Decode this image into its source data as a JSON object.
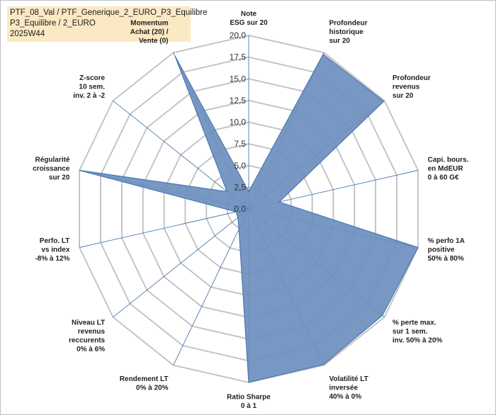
{
  "header": {
    "line1": "PTF_08_Val / PTF_Generique_2_EURO_P3_Equilibre",
    "line2": "P3_Equilibre / 2_EURO",
    "line3": "2025W44"
  },
  "chart_data": {
    "type": "radar",
    "title": "",
    "range": [
      0,
      20
    ],
    "ticks": [
      "0,0",
      "2,5",
      "5,0",
      "7,5",
      "10,0",
      "12,5",
      "15,0",
      "17,5",
      "20,0"
    ],
    "tick_values": [
      0,
      2.5,
      5,
      7.5,
      10,
      12.5,
      15,
      17.5,
      20
    ],
    "grid": true,
    "categories": [
      [
        "Note",
        "ESG sur 20"
      ],
      [
        "Profondeur",
        "historique",
        "sur 20"
      ],
      [
        "Profondeur",
        "revenus",
        "sur 20"
      ],
      [
        "Capi. bours.",
        "en MdEUR",
        "0 à 60 G€"
      ],
      [
        "% perfo 1A",
        "positive",
        "50% à 80%"
      ],
      [
        "% perte max.",
        "sur 1 sem.",
        "inv. 50% à 20%"
      ],
      [
        "Volatilité LT",
        "inversée",
        "40% à 0%"
      ],
      [
        "Ratio Sharpe",
        "0 à 1"
      ],
      [
        "Rendement LT",
        "0% à 20%"
      ],
      [
        "Niveau LT",
        "revenus",
        "reccurents",
        "0% à 6%"
      ],
      [
        "Perfo. LT",
        "vs index",
        "-8% à 12%"
      ],
      [
        "Régularité",
        "croissance",
        "sur 20"
      ],
      [
        "Z-score",
        "10 sem.",
        "inv. 2 à -2"
      ],
      [
        "Momentum",
        "Achat (20) /",
        "Vente (0)"
      ]
    ],
    "series": [
      {
        "values": [
          2.0,
          19.8,
          19.9,
          3.6,
          20.0,
          19.7,
          19.9,
          20.0,
          2.6,
          1.6,
          1.5,
          20.0,
          3.2,
          19.6
        ],
        "color": "#4a78b0"
      }
    ],
    "colors": {
      "fill": "#6d8fbe",
      "stroke": "#4a78b0",
      "grid": "#bfbfbf",
      "spoke": "#4a78b0",
      "title_bg": "#fbe9c4"
    }
  }
}
